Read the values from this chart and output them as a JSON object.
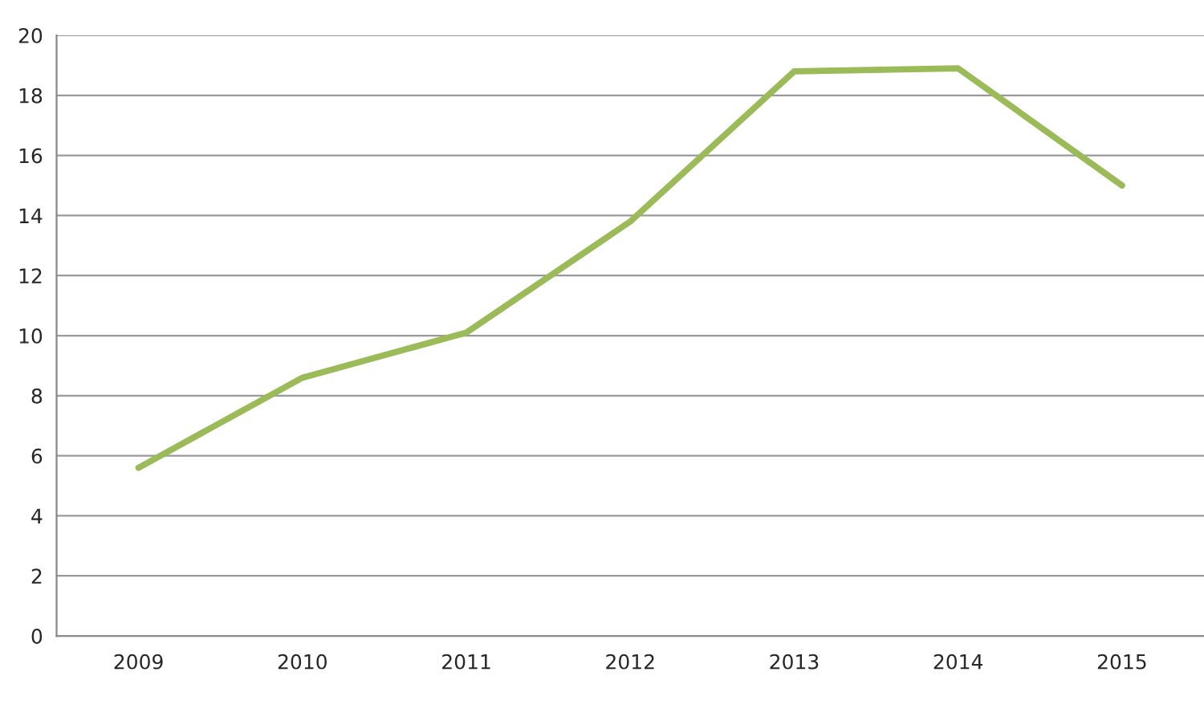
{
  "chart_data": {
    "type": "line",
    "categories": [
      "2009",
      "2010",
      "2011",
      "2012",
      "2013",
      "2014",
      "2015"
    ],
    "series": [
      {
        "color": "#9bbb59",
        "values": [
          5.6,
          8.6,
          10.1,
          13.8,
          18.8,
          18.9,
          15.0
        ]
      }
    ],
    "ylim": [
      0,
      20
    ],
    "yticks": [
      0,
      2,
      4,
      6,
      8,
      10,
      12,
      14,
      16,
      18,
      20
    ],
    "grid": "y",
    "marker": "none",
    "line_style": "solid"
  }
}
